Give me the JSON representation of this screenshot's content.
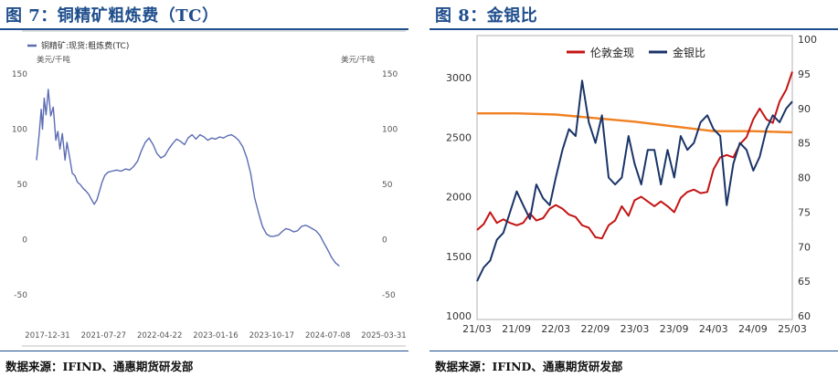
{
  "left": {
    "title": "图 7：铜精矿粗炼费（TC）",
    "source": "数据来源：IFIND、通惠期货研发部",
    "chart_data": {
      "type": "line",
      "title": "",
      "legend_position": "top-left",
      "unit_left": "美元/千吨",
      "unit_right": "美元/千吨",
      "ylim": [
        -50,
        150
      ],
      "yticks": [
        -50,
        0,
        50,
        100,
        150
      ],
      "xlabel": "",
      "x_range": [
        "2017-12-31",
        "2025-03-31"
      ],
      "xticks": [
        "2017-12-31",
        "2021-07-27",
        "2022-04-22",
        "2023-01-16",
        "2023-10-17",
        "2024-07-08",
        "2025-03-31"
      ],
      "grid": false,
      "colors": {
        "series": "#5b6cb4"
      },
      "series": [
        {
          "name": "铜精矿:现货:粗炼费(TC)",
          "points": [
            [
              "2017-12-31",
              72
            ],
            [
              "2018-01-20",
              95
            ],
            [
              "2018-02-05",
              118
            ],
            [
              "2018-02-15",
              100
            ],
            [
              "2018-03-01",
              128
            ],
            [
              "2018-03-15",
              113
            ],
            [
              "2018-04-01",
              136
            ],
            [
              "2018-04-20",
              112
            ],
            [
              "2018-05-10",
              120
            ],
            [
              "2018-05-30",
              90
            ],
            [
              "2018-06-15",
              98
            ],
            [
              "2018-07-01",
              82
            ],
            [
              "2018-07-20",
              96
            ],
            [
              "2018-08-10",
              72
            ],
            [
              "2018-08-25",
              88
            ],
            [
              "2018-09-15",
              74
            ],
            [
              "2018-10-05",
              60
            ],
            [
              "2018-10-25",
              58
            ],
            [
              "2018-11-15",
              52
            ],
            [
              "2018-12-05",
              50
            ],
            [
              "2019-01-01",
              46
            ],
            [
              "2019-01-20",
              44
            ],
            [
              "2019-02-10",
              41
            ],
            [
              "2019-03-05",
              36
            ],
            [
              "2019-03-25",
              32
            ],
            [
              "2019-04-15",
              36
            ],
            [
              "2019-05-05",
              44
            ],
            [
              "2019-05-25",
              52
            ],
            [
              "2019-06-15",
              58
            ],
            [
              "2019-07-10",
              61
            ],
            [
              "2019-08-10",
              62
            ],
            [
              "2019-09-15",
              63
            ],
            [
              "2019-10-20",
              62
            ],
            [
              "2019-11-25",
              64
            ],
            [
              "2019-12-25",
              63
            ],
            [
              "2020-01-25",
              66
            ],
            [
              "2020-02-25",
              71
            ],
            [
              "2020-03-25",
              80
            ],
            [
              "2020-04-25",
              88
            ],
            [
              "2020-05-25",
              92
            ],
            [
              "2020-06-25",
              86
            ],
            [
              "2020-07-25",
              78
            ],
            [
              "2020-08-25",
              74
            ],
            [
              "2020-09-25",
              76
            ],
            [
              "2020-10-25",
              82
            ],
            [
              "2020-11-25",
              87
            ],
            [
              "2020-12-25",
              91
            ],
            [
              "2021-01-25",
              89
            ],
            [
              "2021-02-25",
              86
            ],
            [
              "2021-03-25",
              92
            ],
            [
              "2021-04-25",
              95
            ],
            [
              "2021-05-25",
              91
            ],
            [
              "2021-06-25",
              95
            ],
            [
              "2021-07-27",
              93
            ],
            [
              "2021-08-25",
              90
            ],
            [
              "2021-09-25",
              92
            ],
            [
              "2021-10-25",
              91
            ],
            [
              "2021-11-25",
              93
            ],
            [
              "2021-12-25",
              92
            ],
            [
              "2022-01-25",
              94
            ],
            [
              "2022-02-25",
              95
            ],
            [
              "2022-03-25",
              93
            ],
            [
              "2022-04-22",
              90
            ],
            [
              "2022-05-25",
              84
            ],
            [
              "2022-06-25",
              74
            ],
            [
              "2022-07-25",
              60
            ],
            [
              "2022-08-25",
              38
            ],
            [
              "2022-09-25",
              24
            ],
            [
              "2022-10-25",
              12
            ],
            [
              "2022-11-25",
              5
            ],
            [
              "2022-12-25",
              3
            ],
            [
              "2023-01-16",
              3
            ],
            [
              "2023-02-25",
              4
            ],
            [
              "2023-03-25",
              7
            ],
            [
              "2023-04-25",
              10
            ],
            [
              "2023-05-25",
              9
            ],
            [
              "2023-06-25",
              7
            ],
            [
              "2023-07-25",
              8
            ],
            [
              "2023-08-25",
              12
            ],
            [
              "2023-09-25",
              13
            ],
            [
              "2023-10-17",
              12
            ],
            [
              "2023-11-15",
              10
            ],
            [
              "2023-12-15",
              8
            ],
            [
              "2024-01-15",
              4
            ],
            [
              "2024-02-15",
              -3
            ],
            [
              "2024-03-15",
              -9
            ],
            [
              "2024-04-15",
              -16
            ],
            [
              "2024-05-15",
              -21
            ],
            [
              "2024-06-15",
              -24
            ]
          ]
        }
      ]
    }
  },
  "right": {
    "title": "图 8：金银比",
    "source": "数据来源：IFIND、通惠期货研发部",
    "chart_data": {
      "type": "line",
      "title": "",
      "legend_position": "top",
      "ylim_left": [
        1000,
        3000
      ],
      "yticks_left": [
        1000,
        1500,
        2000,
        2500,
        3000
      ],
      "ylim_right": [
        60,
        100
      ],
      "yticks_right": [
        60,
        65,
        70,
        75,
        80,
        85,
        90,
        95,
        100
      ],
      "xlabel": "",
      "x_range": [
        "2021-03",
        "2025-03"
      ],
      "xticks": [
        "21/03",
        "21/09",
        "22/03",
        "22/09",
        "23/03",
        "23/09",
        "24/03",
        "24/09",
        "25/03"
      ],
      "grid": false,
      "colors": {
        "gold": "#c41414",
        "gold_silver_ratio": "#1a3468",
        "trend": "#f08020"
      },
      "series": [
        {
          "name": "伦敦金现",
          "axis": "left",
          "points": [
            [
              "2021-03",
              1720
            ],
            [
              "2021-04",
              1770
            ],
            [
              "2021-05",
              1870
            ],
            [
              "2021-06",
              1780
            ],
            [
              "2021-07",
              1810
            ],
            [
              "2021-08",
              1780
            ],
            [
              "2021-09",
              1760
            ],
            [
              "2021-10",
              1780
            ],
            [
              "2021-11",
              1860
            ],
            [
              "2021-12",
              1800
            ],
            [
              "2022-01",
              1820
            ],
            [
              "2022-02",
              1900
            ],
            [
              "2022-03",
              1930
            ],
            [
              "2022-04",
              1900
            ],
            [
              "2022-05",
              1850
            ],
            [
              "2022-06",
              1830
            ],
            [
              "2022-07",
              1760
            ],
            [
              "2022-08",
              1740
            ],
            [
              "2022-09",
              1660
            ],
            [
              "2022-10",
              1650
            ],
            [
              "2022-11",
              1760
            ],
            [
              "2022-12",
              1800
            ],
            [
              "2023-01",
              1920
            ],
            [
              "2023-02",
              1840
            ],
            [
              "2023-03",
              1970
            ],
            [
              "2023-04",
              2000
            ],
            [
              "2023-05",
              1960
            ],
            [
              "2023-06",
              1920
            ],
            [
              "2023-07",
              1960
            ],
            [
              "2023-08",
              1920
            ],
            [
              "2023-09",
              1870
            ],
            [
              "2023-10",
              1990
            ],
            [
              "2023-11",
              2040
            ],
            [
              "2023-12",
              2060
            ],
            [
              "2024-01",
              2030
            ],
            [
              "2024-02",
              2040
            ],
            [
              "2024-03",
              2230
            ],
            [
              "2024-04",
              2330
            ],
            [
              "2024-05",
              2350
            ],
            [
              "2024-06",
              2330
            ],
            [
              "2024-07",
              2440
            ],
            [
              "2024-08",
              2500
            ],
            [
              "2024-09",
              2650
            ],
            [
              "2024-10",
              2740
            ],
            [
              "2024-11",
              2650
            ],
            [
              "2024-12",
              2620
            ],
            [
              "2025-01",
              2800
            ],
            [
              "2025-02",
              2900
            ],
            [
              "2025-03",
              3050
            ]
          ]
        },
        {
          "name": "金银比",
          "axis": "right",
          "points": [
            [
              "2021-03",
              65
            ],
            [
              "2021-04",
              67
            ],
            [
              "2021-05",
              68
            ],
            [
              "2021-06",
              71
            ],
            [
              "2021-07",
              72
            ],
            [
              "2021-08",
              75
            ],
            [
              "2021-09",
              78
            ],
            [
              "2021-10",
              76
            ],
            [
              "2021-11",
              74
            ],
            [
              "2021-12",
              79
            ],
            [
              "2022-01",
              77
            ],
            [
              "2022-02",
              76
            ],
            [
              "2022-03",
              80
            ],
            [
              "2022-04",
              84
            ],
            [
              "2022-05",
              87
            ],
            [
              "2022-06",
              86
            ],
            [
              "2022-07",
              94
            ],
            [
              "2022-08",
              88
            ],
            [
              "2022-09",
              85
            ],
            [
              "2022-10",
              89
            ],
            [
              "2022-11",
              80
            ],
            [
              "2022-12",
              79
            ],
            [
              "2023-01",
              80
            ],
            [
              "2023-02",
              86
            ],
            [
              "2023-03",
              82
            ],
            [
              "2023-04",
              79
            ],
            [
              "2023-05",
              84
            ],
            [
              "2023-06",
              84
            ],
            [
              "2023-07",
              79
            ],
            [
              "2023-08",
              84
            ],
            [
              "2023-09",
              80
            ],
            [
              "2023-10",
              86
            ],
            [
              "2023-11",
              84
            ],
            [
              "2023-12",
              85
            ],
            [
              "2024-01",
              88
            ],
            [
              "2024-02",
              89
            ],
            [
              "2024-03",
              87
            ],
            [
              "2024-04",
              86
            ],
            [
              "2024-05",
              76
            ],
            [
              "2024-06",
              82
            ],
            [
              "2024-07",
              85
            ],
            [
              "2024-08",
              84
            ],
            [
              "2024-09",
              81
            ],
            [
              "2024-10",
              83
            ],
            [
              "2024-11",
              87
            ],
            [
              "2024-12",
              89
            ],
            [
              "2025-01",
              88
            ],
            [
              "2025-02",
              90
            ],
            [
              "2025-03",
              91
            ]
          ]
        },
        {
          "name": "",
          "axis": "left",
          "points": [
            [
              "2021-03",
              2700
            ],
            [
              "2021-09",
              2700
            ],
            [
              "2022-03",
              2690
            ],
            [
              "2022-09",
              2660
            ],
            [
              "2023-03",
              2630
            ],
            [
              "2023-09",
              2590
            ],
            [
              "2024-03",
              2550
            ],
            [
              "2024-09",
              2550
            ],
            [
              "2025-03",
              2540
            ]
          ]
        }
      ]
    }
  }
}
